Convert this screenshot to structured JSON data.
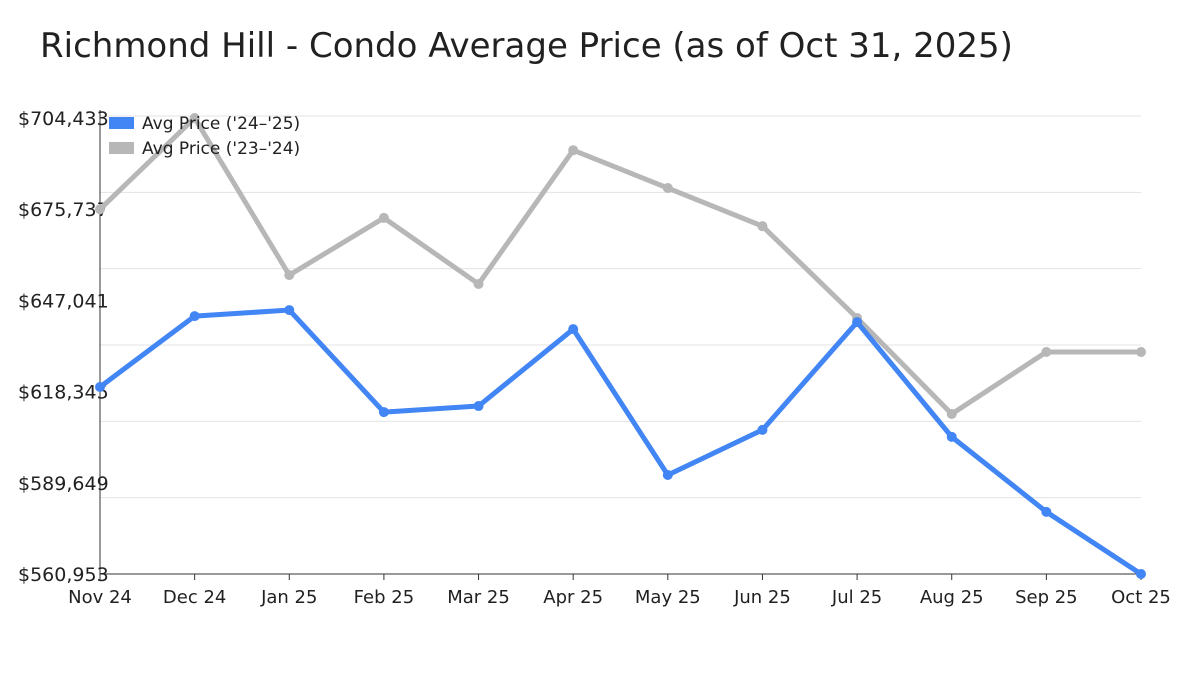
{
  "chart_data": {
    "type": "line",
    "title": "Richmond Hill - Condo Average Price (as of Oct 31, 2025)",
    "xlabel": "",
    "ylabel": "",
    "categories": [
      "Nov 24",
      "Dec 24",
      "Jan 25",
      "Feb 25",
      "Mar 25",
      "Apr 25",
      "May 25",
      "Jun 25",
      "Jul 25",
      "Aug 25",
      "Sep 25",
      "Oct 25"
    ],
    "ylim": [
      560953,
      704433
    ],
    "yticks": [
      560953,
      589649,
      618345,
      647041,
      675737,
      704433
    ],
    "ytick_labels": [
      "$560,953",
      "$589,649",
      "$618,345",
      "$647,041",
      "$675,737",
      "$704,433"
    ],
    "grid": true,
    "legend_position": "top-left",
    "series": [
      {
        "name": "Avg Price ('24–'25)",
        "color": "#4285f4",
        "values": [
          619800,
          642100,
          644000,
          611900,
          613800,
          638000,
          592100,
          606300,
          640200,
          604100,
          580500,
          560953
        ]
      },
      {
        "name": "Avg Price ('23–'24)",
        "color": "#b7b7b7",
        "values": [
          675737,
          704433,
          655000,
          673000,
          652200,
          694300,
          682400,
          670400,
          641500,
          611300,
          630800,
          630800
        ]
      }
    ]
  }
}
